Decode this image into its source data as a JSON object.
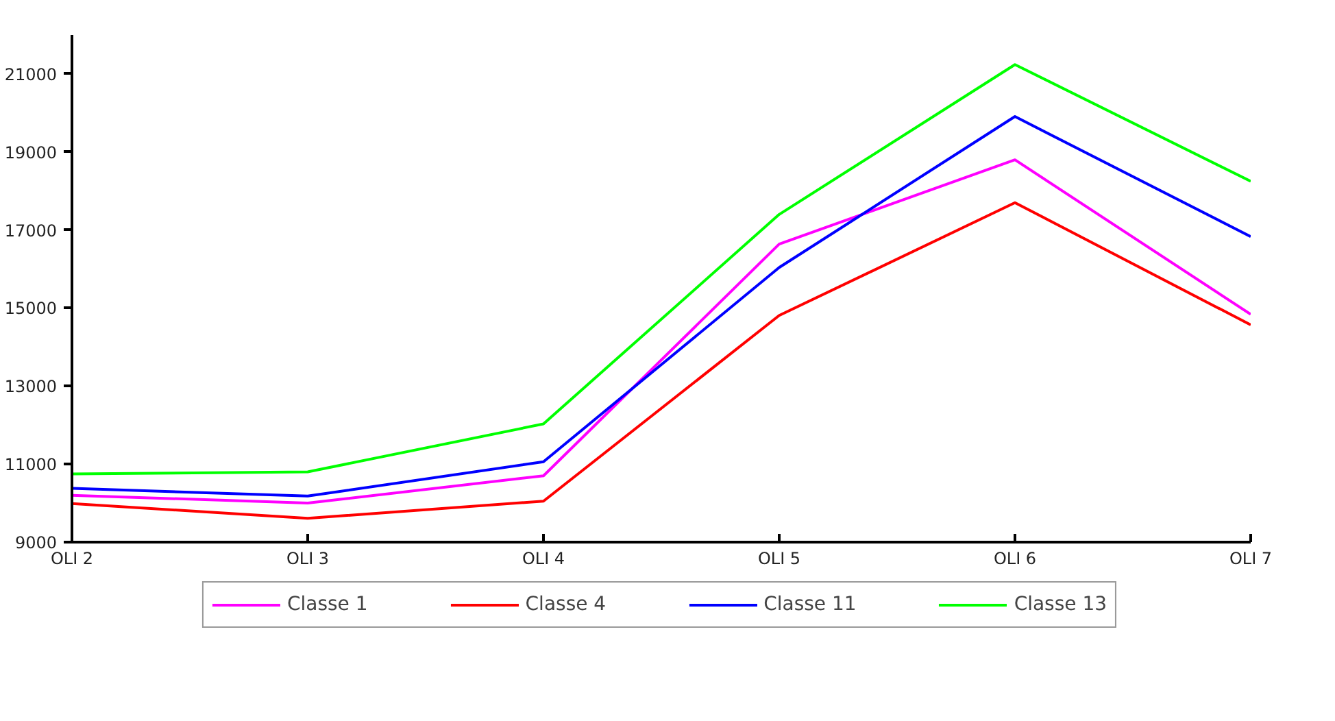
{
  "chart_data": {
    "type": "line",
    "categories": [
      "OLI 2",
      "OLI 3",
      "OLI 4",
      "OLI 5",
      "OLI 6",
      "OLI 7"
    ],
    "series": [
      {
        "name": "Classe 1",
        "color": "#ff00ff",
        "values": [
          10200,
          10000,
          10700,
          16640,
          18800,
          14840
        ]
      },
      {
        "name": "Classe 4",
        "color": "#ff0000",
        "values": [
          9990,
          9610,
          10050,
          14810,
          17700,
          14570
        ]
      },
      {
        "name": "Classe 11",
        "color": "#0000ff",
        "values": [
          10380,
          10180,
          11060,
          16040,
          19910,
          16830
        ]
      },
      {
        "name": "Classe 13",
        "color": "#00ff00",
        "values": [
          10750,
          10800,
          12030,
          17400,
          21240,
          18250
        ]
      }
    ],
    "ylim": [
      9000,
      22000
    ],
    "yticks": [
      9000,
      11000,
      13000,
      15000,
      17000,
      19000,
      21000
    ],
    "grid": false,
    "legend": "bottom",
    "marker": "none",
    "line_style": "solid"
  }
}
